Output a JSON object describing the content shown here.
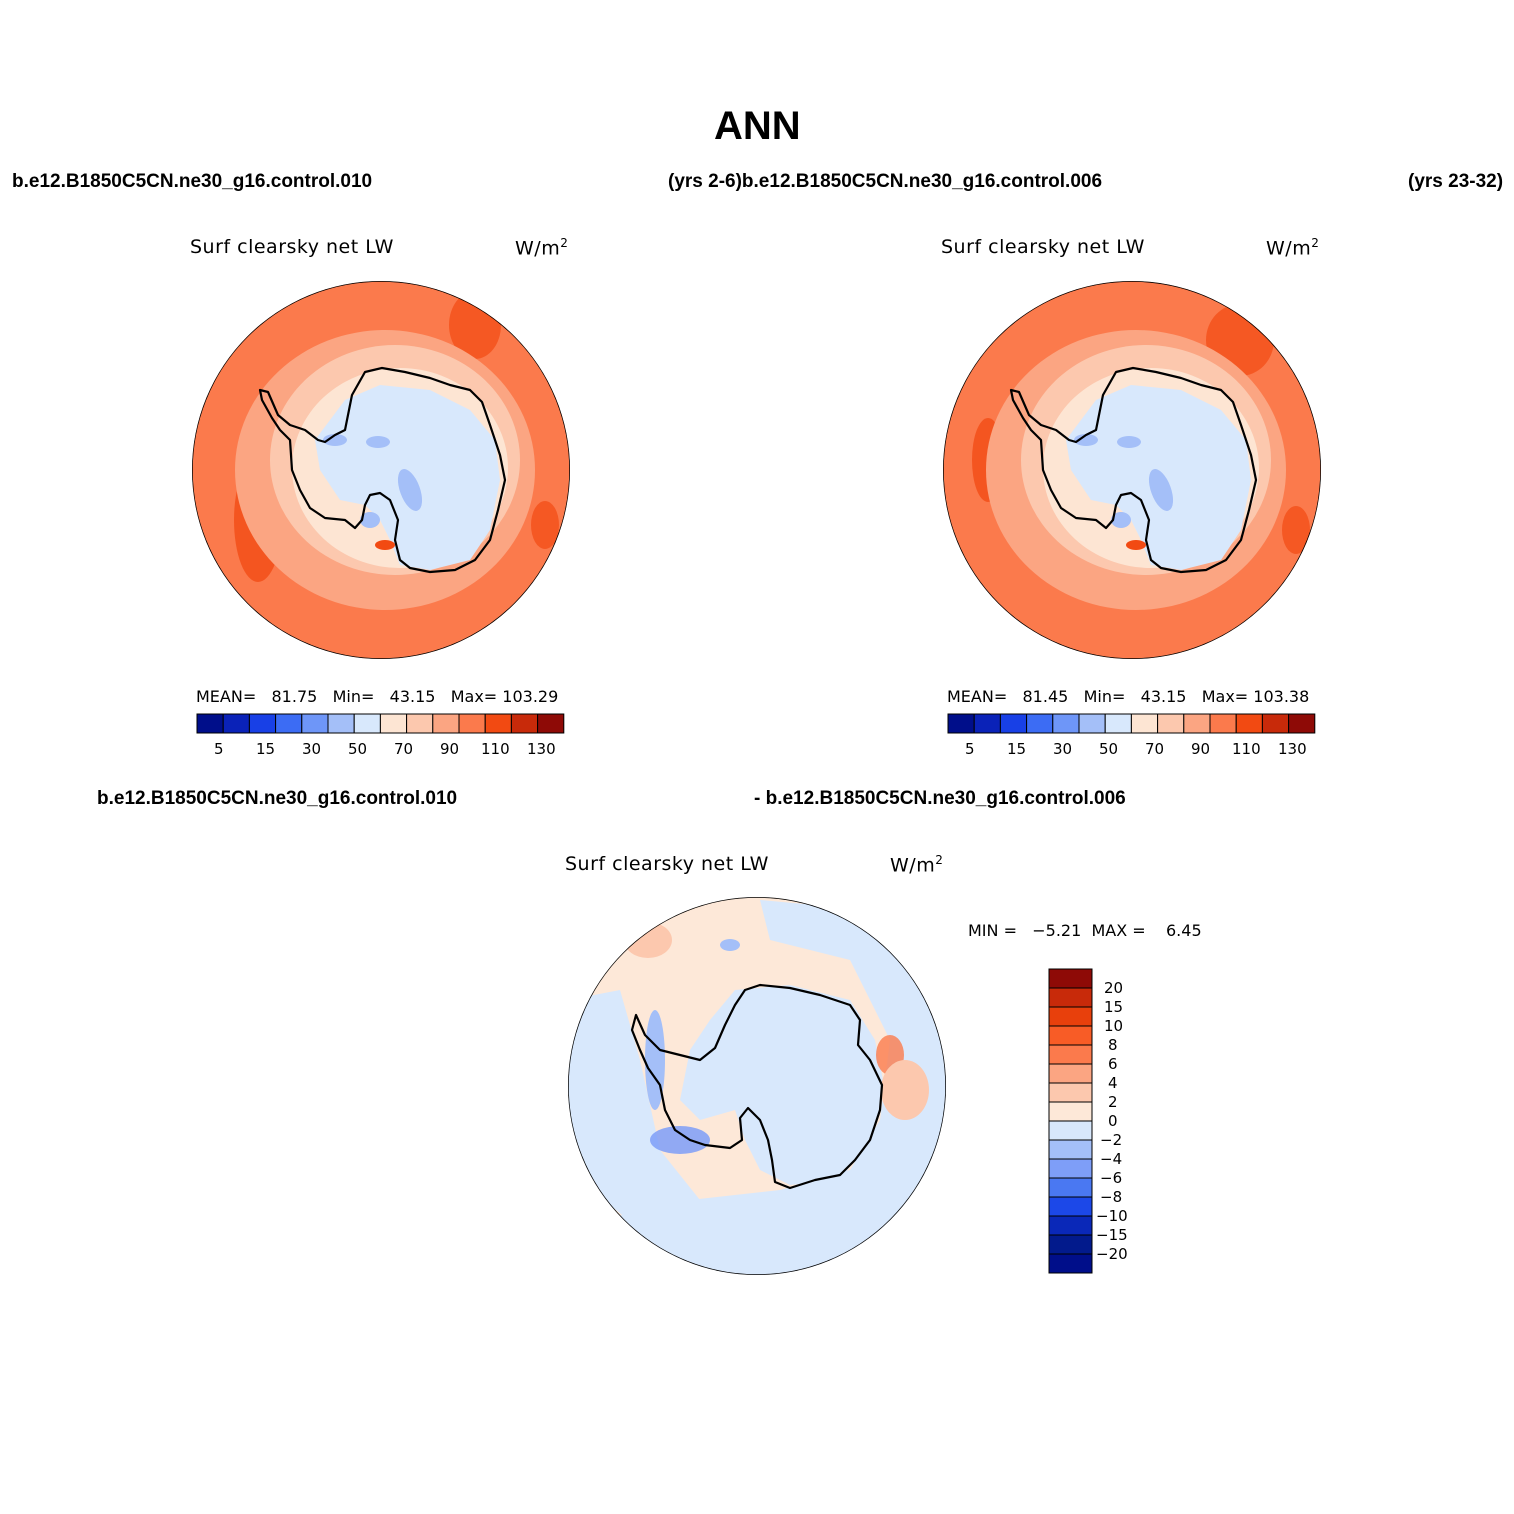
{
  "title": "ANN",
  "top_left_case": "b.e12.B1850C5CN.ne30_g16.control.010",
  "top_mid_case": "(yrs 2-6)b.e12.B1850C5CN.ne30_g16.control.006",
  "top_right_years": "(yrs 23-32)",
  "diff_left_case": "b.e12.B1850C5CN.ne30_g16.control.010",
  "diff_right_case": "- b.e12.B1850C5CN.ne30_g16.control.006",
  "panels": [
    {
      "variable": "Surf clearsky net LW",
      "units": "W/m",
      "units_sup": "2",
      "mean_label": "MEAN=",
      "mean": "81.75",
      "min_label": "Min=",
      "min": "43.15",
      "max_label": "Max=",
      "max": "103.29"
    },
    {
      "variable": "Surf clearsky net LW",
      "units": "W/m",
      "units_sup": "2",
      "mean_label": "MEAN=",
      "mean": "81.45",
      "min_label": "Min=",
      "min": "43.15",
      "max_label": "Max=",
      "max": "103.38"
    },
    {
      "variable": "Surf clearsky net LW",
      "units": "W/m",
      "units_sup": "2",
      "min_label": "MIN =",
      "min": "−5.21",
      "max_label": "MAX =",
      "max": "6.45"
    }
  ],
  "colorbar_main": {
    "ticks": [
      "5",
      "15",
      "30",
      "50",
      "70",
      "90",
      "110",
      "130"
    ],
    "colors": [
      "#000e8a",
      "#0a22b8",
      "#1840e6",
      "#3c6cf4",
      "#6e96f8",
      "#a4bff8",
      "#d8e8fc",
      "#fde5d3",
      "#fcc8ae",
      "#fba582",
      "#fb7a4c",
      "#f24a12",
      "#c82a0a",
      "#8e0a06"
    ]
  },
  "colorbar_diff": {
    "ticks": [
      "20",
      "15",
      "10",
      "8",
      "6",
      "4",
      "2",
      "0",
      "−2",
      "−4",
      "−6",
      "−8",
      "−10",
      "−15",
      "−20"
    ],
    "colors": [
      "#8e0a06",
      "#c82a0a",
      "#e8400c",
      "#f85c26",
      "#fb7a4c",
      "#fba582",
      "#fcc8ae",
      "#fde8d8",
      "#d8e8fc",
      "#a4bff8",
      "#7e9ef8",
      "#4a78f2",
      "#1c48e8",
      "#0a28b8",
      "#021a8c",
      "#000e8a"
    ]
  },
  "map_colors": {
    "outer": "#fb7a4c",
    "ring": "#fba582",
    "mid": "#fcc8ae",
    "coast": "#fde5d3",
    "ice": "#d8e8fc",
    "blue": "#a4bff8",
    "hot": "#f24a12",
    "diff_warm": "#fde8d8",
    "diff_cool": "#d8e8fc",
    "diff_blue": "#a4bff8",
    "diff_bluedeep": "#7e9ef8",
    "diff_orange": "#fcc8ae",
    "diff_hot": "#fb7a4c"
  }
}
